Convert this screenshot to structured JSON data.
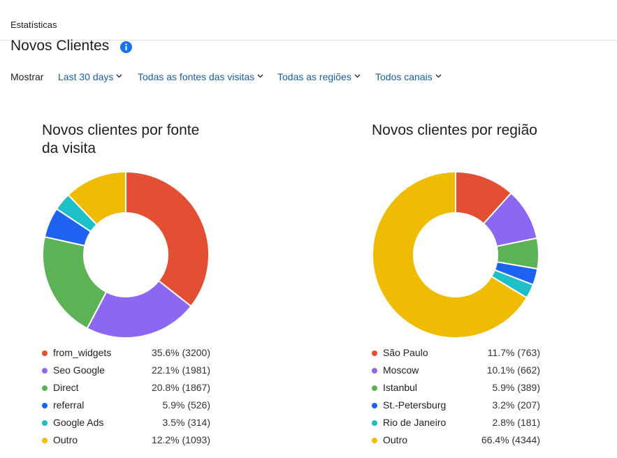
{
  "breadcrumb": "Estatísticas",
  "page_title": "Novos Clientes",
  "filters": {
    "label": "Mostrar",
    "items": [
      "Last 30 days",
      "Todas as fontes das visitas",
      "Todas as regiões",
      "Todos canais"
    ]
  },
  "chart_data": [
    {
      "type": "pie",
      "title": "Novos clientes por fonte da visita",
      "donut": true,
      "categories": [
        "from_widgets",
        "Seo Google",
        "Direct",
        "referral",
        "Google Ads",
        "Outro"
      ],
      "values": [
        3200,
        1981,
        1867,
        526,
        314,
        1093
      ],
      "percents": [
        "35.6%",
        "22.1%",
        "20.8%",
        "5.9%",
        "3.5%",
        "12.2%"
      ],
      "labels": [
        "35.6% (3200)",
        "22.1% (1981)",
        "20.8% (1867)",
        "5.9% (526)",
        "3.5% (314)",
        "12.2% (1093)"
      ],
      "colors": [
        "#e34f32",
        "#8c67f2",
        "#5cb254",
        "#1d62f0",
        "#1ebfc7",
        "#efbc02"
      ],
      "legend_position": "bottom"
    },
    {
      "type": "pie",
      "title": "Novos clientes por região",
      "donut": true,
      "categories": [
        "São Paulo",
        "Moscow",
        "Istanbul",
        "St.-Petersburg",
        "Rio de Janeiro",
        "Outro"
      ],
      "values": [
        763,
        662,
        389,
        207,
        181,
        4344
      ],
      "percents": [
        "11.7%",
        "10.1%",
        "5.9%",
        "3.2%",
        "2.8%",
        "66.4%"
      ],
      "labels": [
        "11.7% (763)",
        "10.1% (662)",
        "5.9% (389)",
        "3.2% (207)",
        "2.8% (181)",
        "66.4% (4344)"
      ],
      "colors": [
        "#e34f32",
        "#8c67f2",
        "#5cb254",
        "#1d62f0",
        "#1ebfc7",
        "#efbc02"
      ],
      "legend_position": "bottom"
    }
  ]
}
